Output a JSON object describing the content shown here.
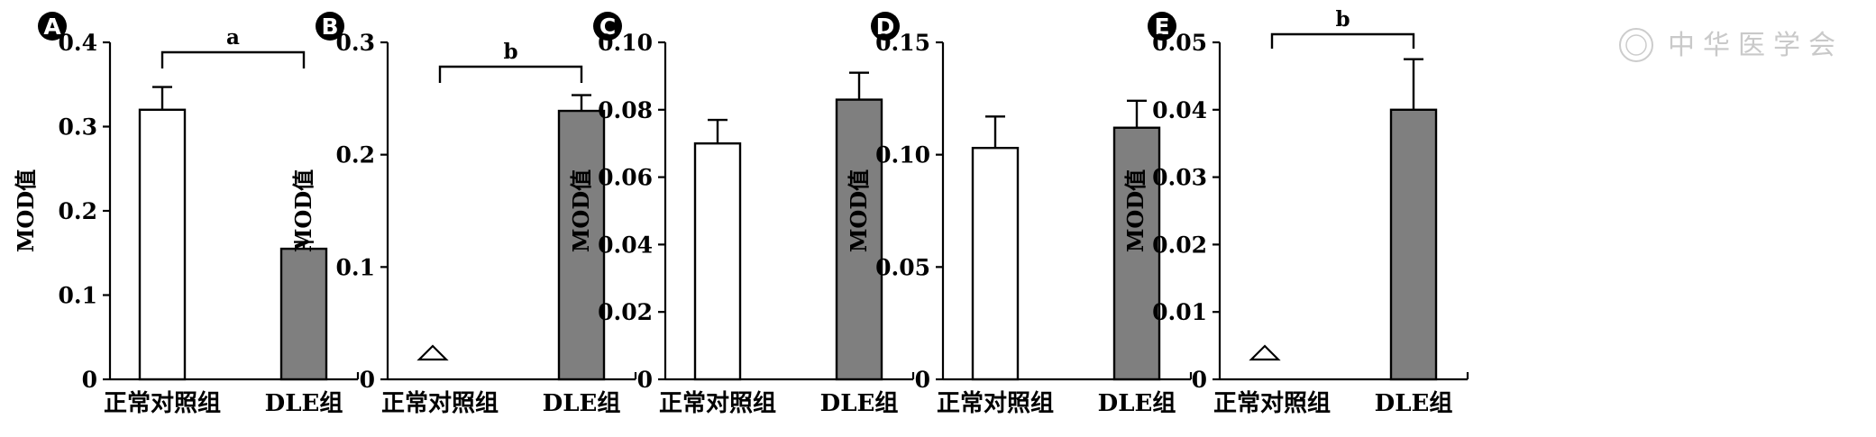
{
  "figure": {
    "watermark": "中华医学会"
  },
  "chart_data": [
    {
      "type": "bar",
      "panel": "A",
      "ylabel": "MOD值",
      "categories": [
        "正常对照组",
        "DLE组"
      ],
      "values": [
        0.32,
        0.155
      ],
      "errors": [
        0.027,
        0.008
      ],
      "ylim": [
        0,
        0.4
      ],
      "yticks": [
        "0",
        "0.1",
        "0.2",
        "0.3",
        "0.4"
      ],
      "bar_colors": [
        "#ffffff",
        "#7f7f7f"
      ],
      "significance": "a",
      "markers": []
    },
    {
      "type": "bar",
      "panel": "B",
      "ylabel": "MOD值",
      "categories": [
        "正常对照组",
        "DLE组"
      ],
      "values": [
        0.0,
        0.239
      ],
      "errors": [
        0.0,
        0.014
      ],
      "ylim": [
        0,
        0.3
      ],
      "yticks": [
        "0",
        "0.1",
        "0.2",
        "0.3"
      ],
      "bar_colors": [
        "#ffffff",
        "#7f7f7f"
      ],
      "significance": "b",
      "markers": [
        "triangle"
      ]
    },
    {
      "type": "bar",
      "panel": "C",
      "ylabel": "MOD值",
      "categories": [
        "正常对照组",
        "DLE组"
      ],
      "values": [
        0.07,
        0.083
      ],
      "errors": [
        0.007,
        0.008
      ],
      "ylim": [
        0,
        0.1
      ],
      "yticks": [
        "0",
        "0.02",
        "0.04",
        "0.06",
        "0.08",
        "0.10"
      ],
      "bar_colors": [
        "#ffffff",
        "#7f7f7f"
      ],
      "significance": "",
      "markers": []
    },
    {
      "type": "bar",
      "panel": "D",
      "ylabel": "MOD值",
      "categories": [
        "正常对照组",
        "DLE组"
      ],
      "values": [
        0.103,
        0.112
      ],
      "errors": [
        0.014,
        0.012
      ],
      "ylim": [
        0,
        0.15
      ],
      "yticks": [
        "0",
        "0.05",
        "0.10",
        "0.15"
      ],
      "bar_colors": [
        "#ffffff",
        "#7f7f7f"
      ],
      "significance": "",
      "markers": []
    },
    {
      "type": "bar",
      "panel": "E",
      "ylabel": "MOD值",
      "categories": [
        "正常对照组",
        "DLE组"
      ],
      "values": [
        0.0,
        0.04
      ],
      "errors": [
        0.0,
        0.0075
      ],
      "ylim": [
        0,
        0.05
      ],
      "yticks": [
        "0",
        "0.01",
        "0.02",
        "0.03",
        "0.04",
        "0.05"
      ],
      "bar_colors": [
        "#ffffff",
        "#7f7f7f"
      ],
      "significance": "b",
      "markers": [
        "triangle"
      ]
    }
  ]
}
